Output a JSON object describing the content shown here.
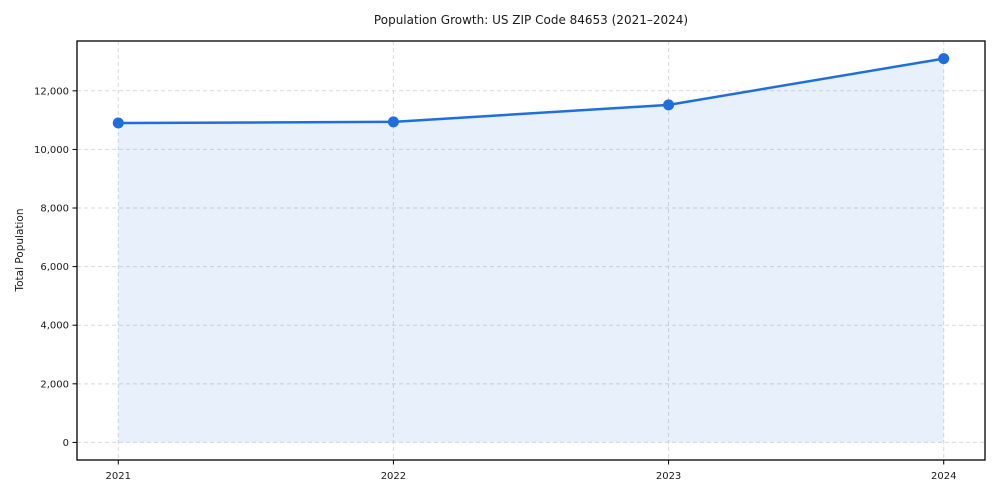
{
  "title": "Population Growth: US ZIP Code 84653 (2021–2024)",
  "colors": {
    "line": "#1f6ede",
    "marker": "#1f6ede",
    "area_fill": "rgba(31, 110, 222, 0.10)",
    "grid": "#d9d9d9",
    "spine": "#000000",
    "tick": "#000000",
    "text": "#1a1a1a",
    "background": "#ffffff"
  },
  "chart_data": {
    "type": "area",
    "x": [
      2021,
      2022,
      2023,
      2024
    ],
    "series": [
      {
        "name": "Total Population",
        "values": [
          10900,
          10940,
          11520,
          13100
        ]
      }
    ],
    "title": "Population Growth: US ZIP Code 84653 (2021–2024)",
    "xlabel": "",
    "ylabel": "Total Population",
    "xticks": [
      2021,
      2022,
      2023,
      2024
    ],
    "xtick_labels": [
      "2021",
      "2022",
      "2023",
      "2024"
    ],
    "yticks": [
      0,
      2000,
      4000,
      6000,
      8000,
      10000,
      12000
    ],
    "ytick_labels": [
      "0",
      "2,000",
      "4,000",
      "6,000",
      "8,000",
      "10,000",
      "12,000"
    ],
    "xlim": [
      2020.85,
      2024.15
    ],
    "ylim": [
      -600,
      13700
    ],
    "grid": "dashed",
    "legend": "none",
    "marker": "circle",
    "line_width": 2.5,
    "marker_radius": 5.5,
    "fill_to_zero": true
  }
}
